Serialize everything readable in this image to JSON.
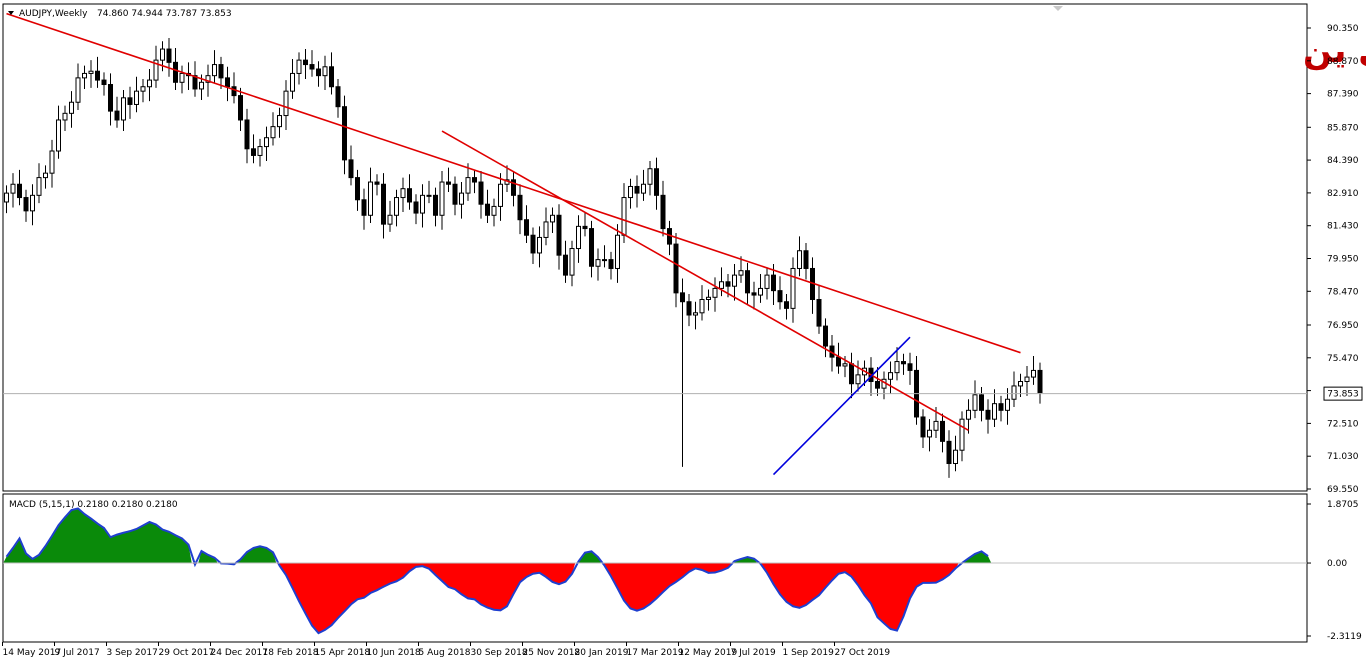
{
  "chart_data": [
    {
      "type": "candlestick",
      "symbol_label": "AUDJPY,Weekly",
      "ohlc_readout": "74.860 74.944 73.787 73.853",
      "watermark": "أسترالي ين",
      "current_price": 73.853,
      "current_price_label": "73.853",
      "ylim": [
        69.55,
        90.6
      ],
      "y_ticks": [
        "90.350",
        "88.870",
        "87.390",
        "85.870",
        "84.390",
        "82.910",
        "81.430",
        "79.950",
        "78.470",
        "76.950",
        "75.470",
        "73.990",
        "72.510",
        "71.030",
        "69.550"
      ],
      "x_ticks": [
        "14 May 2017",
        "9 Jul 2017",
        "3 Sep 2017",
        "29 Oct 2017",
        "24 Dec 2017",
        "18 Feb 2018",
        "15 Apr 2018",
        "10 Jun 2018",
        "5 Aug 2018",
        "30 Sep 2018",
        "25 Nov 2018",
        "20 Jan 2019",
        "17 Mar 2019",
        "12 May 2019",
        "7 Jul 2019",
        "1 Sep 2019",
        "27 Oct 2019"
      ],
      "closes": [
        82.9,
        83.3,
        82.7,
        82.1,
        82.8,
        83.6,
        83.8,
        84.8,
        86.2,
        86.5,
        87.0,
        88.1,
        88.3,
        88.4,
        88.0,
        87.8,
        86.6,
        86.2,
        87.2,
        86.9,
        87.5,
        87.7,
        88.0,
        88.9,
        89.4,
        88.8,
        87.9,
        88.3,
        88.2,
        87.6,
        87.9,
        88.2,
        88.7,
        88.1,
        87.7,
        87.3,
        86.2,
        84.9,
        84.6,
        85.0,
        85.4,
        85.9,
        86.4,
        87.5,
        88.3,
        88.9,
        88.7,
        88.5,
        88.2,
        88.6,
        87.7,
        86.8,
        84.4,
        83.6,
        82.6,
        81.9,
        83.4,
        83.3,
        81.5,
        81.9,
        82.7,
        83.1,
        82.5,
        82.0,
        82.8,
        82.8,
        81.9,
        83.4,
        83.3,
        82.4,
        82.9,
        83.6,
        83.4,
        82.4,
        81.9,
        82.3,
        83.3,
        83.5,
        82.8,
        81.7,
        81.0,
        80.2,
        80.9,
        81.6,
        81.9,
        80.1,
        79.2,
        80.4,
        81.4,
        81.3,
        79.6,
        79.9,
        79.9,
        79.5,
        81.0,
        82.7,
        83.2,
        82.9,
        83.3,
        84.0,
        82.8,
        81.3,
        80.6,
        78.4,
        78.0,
        77.4,
        77.5,
        78.1,
        78.2,
        78.6,
        78.9,
        78.7,
        79.2,
        79.4,
        78.4,
        78.3,
        78.6,
        79.2,
        78.5,
        78.0,
        77.7,
        79.5,
        80.3,
        79.5,
        78.1,
        76.9,
        76.0,
        75.5,
        75.1,
        75.2,
        74.3,
        74.7,
        75.0,
        74.4,
        74.1,
        74.5,
        74.8,
        75.3,
        75.2,
        74.9,
        72.8,
        71.9,
        72.2,
        72.6,
        71.7,
        70.7,
        71.3,
        72.7,
        73.1,
        73.8,
        73.1,
        72.7,
        73.4,
        73.1,
        73.6,
        74.2,
        74.4,
        74.6,
        74.9,
        73.9
      ],
      "trendlines": [
        {
          "color": "#e00000",
          "from": {
            "bar": 0,
            "price": 91.0
          },
          "to": {
            "bar": 156,
            "price": 75.7
          }
        },
        {
          "color": "#e00000",
          "from": {
            "bar": 67,
            "price": 85.7
          },
          "to": {
            "bar": 148,
            "price": 72.2
          }
        },
        {
          "color": "#0000dd",
          "from": {
            "bar": 118,
            "price": 70.2
          },
          "to": {
            "bar": 139,
            "price": 76.4
          }
        }
      ]
    },
    {
      "type": "area",
      "indicator_label": "MACD (5,15,1) 0.2180 0.2180 0.2180",
      "ylim": [
        -2.3119,
        1.8705
      ],
      "y_ticks": [
        "1.8705",
        "0.00",
        "-2.3119"
      ],
      "positive_color": "#0a8a0a",
      "negative_color": "#ff0000",
      "line_color": "#1f3fcf",
      "values": [
        0.2,
        0.48,
        0.78,
        0.3,
        0.13,
        0.26,
        0.54,
        0.86,
        1.2,
        1.45,
        1.68,
        1.73,
        1.55,
        1.41,
        1.25,
        1.11,
        0.82,
        0.9,
        0.96,
        1.01,
        1.08,
        1.19,
        1.3,
        1.22,
        1.06,
        0.99,
        0.88,
        0.78,
        0.58,
        -0.05,
        0.38,
        0.26,
        0.17,
        -0.01,
        -0.02,
        -0.04,
        0.12,
        0.35,
        0.48,
        0.53,
        0.48,
        0.34,
        -0.08,
        -0.38,
        -0.79,
        -1.21,
        -1.6,
        -1.98,
        -2.22,
        -2.12,
        -1.97,
        -1.74,
        -1.53,
        -1.31,
        -1.15,
        -1.1,
        -0.95,
        -0.86,
        -0.75,
        -0.65,
        -0.58,
        -0.46,
        -0.26,
        -0.12,
        -0.1,
        -0.18,
        -0.38,
        -0.57,
        -0.76,
        -0.83,
        -0.99,
        -1.12,
        -1.15,
        -1.31,
        -1.41,
        -1.48,
        -1.5,
        -1.37,
        -0.98,
        -0.61,
        -0.44,
        -0.34,
        -0.31,
        -0.44,
        -0.6,
        -0.67,
        -0.59,
        -0.34,
        0.05,
        0.33,
        0.37,
        0.19,
        -0.08,
        -0.42,
        -0.8,
        -1.19,
        -1.44,
        -1.51,
        -1.44,
        -1.3,
        -1.12,
        -0.92,
        -0.73,
        -0.6,
        -0.45,
        -0.28,
        -0.17,
        -0.22,
        -0.31,
        -0.3,
        -0.24,
        -0.15,
        0.06,
        0.13,
        0.19,
        0.14,
        -0.02,
        -0.31,
        -0.67,
        -0.99,
        -1.23,
        -1.37,
        -1.42,
        -1.33,
        -1.17,
        -1.02,
        -0.78,
        -0.55,
        -0.34,
        -0.29,
        -0.43,
        -0.7,
        -1.02,
        -1.28,
        -1.72,
        -1.91,
        -2.09,
        -2.14,
        -1.69,
        -1.12,
        -0.75,
        -0.63,
        -0.63,
        -0.62,
        -0.52,
        -0.38,
        -0.17,
        0.0,
        0.15,
        0.29,
        0.37,
        0.22
      ]
    }
  ]
}
